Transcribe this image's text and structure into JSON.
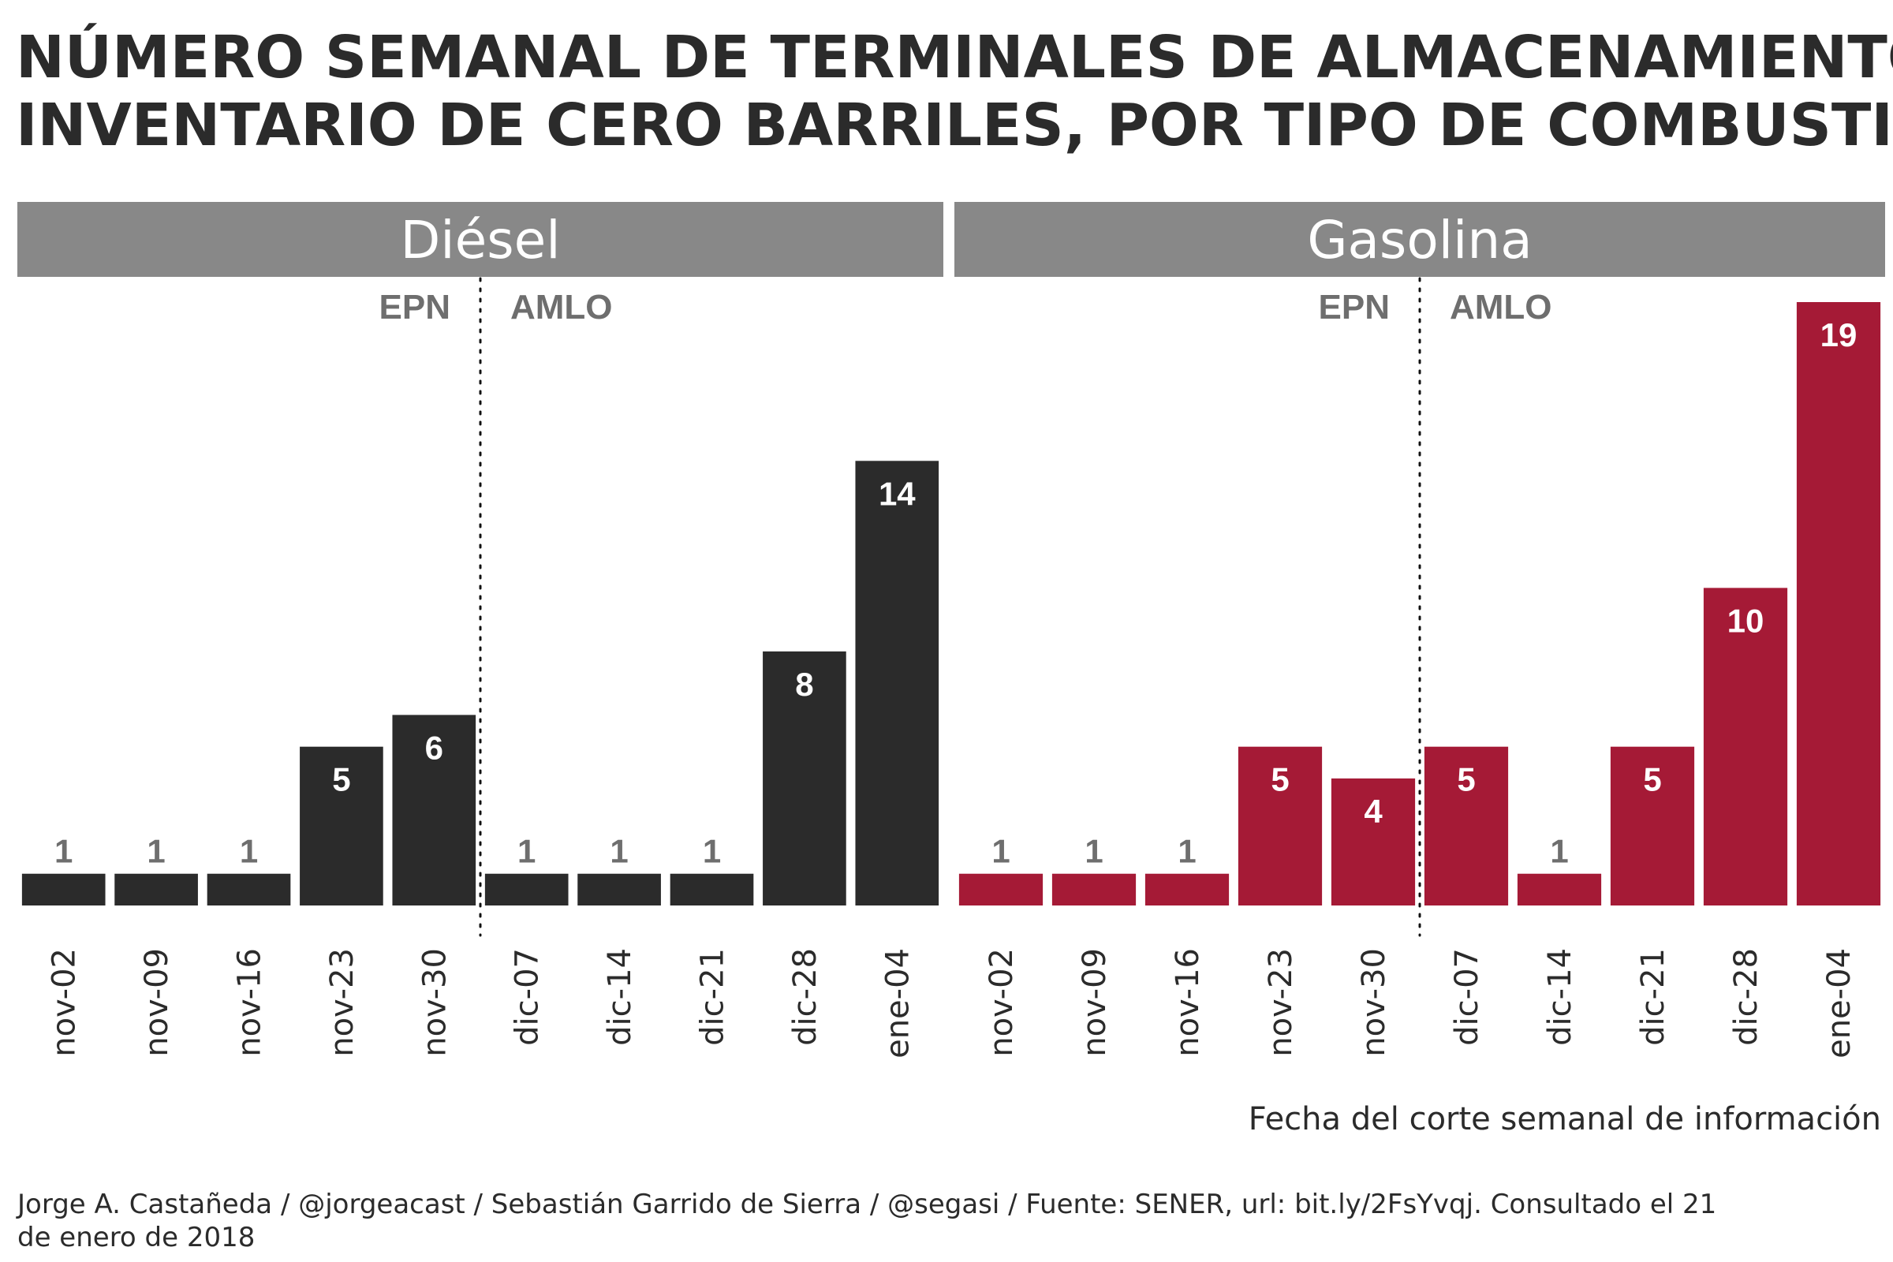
{
  "title_lines": [
    "NÚMERO SEMANAL DE TERMINALES DE ALMACENAMIENTO CON",
    "INVENTARIO DE CERO BARRILES, POR TIPO DE COMBUSTIBLE"
  ],
  "caption_lines": [
    "Jorge A. Castañeda / @jorgeacast / Sebastián Garrido de Sierra / @segasi / Fuente: SENER, url: bit.ly/2FsYvqj. Consultado el 21",
    "de enero de 2018"
  ],
  "chart_data": {
    "type": "bar",
    "xlabel": "Fecha del corte semanal de información",
    "ylabel": "",
    "ylim": [
      0,
      19
    ],
    "grid": false,
    "categories": [
      "nov-02",
      "nov-09",
      "nov-16",
      "nov-23",
      "nov-30",
      "dic-07",
      "dic-14",
      "dic-21",
      "dic-28",
      "ene-04"
    ],
    "periods": [
      "EPN",
      "AMLO"
    ],
    "period_split_after": "nov-30",
    "facets": [
      {
        "name": "Diésel",
        "color": "#2b2b2b",
        "values": [
          1,
          1,
          1,
          5,
          6,
          1,
          1,
          1,
          8,
          14
        ]
      },
      {
        "name": "Gasolina",
        "color": "#a51a36",
        "values": [
          1,
          1,
          1,
          5,
          4,
          5,
          1,
          5,
          10,
          19
        ]
      }
    ]
  },
  "colors": {
    "strip": "#888888",
    "label_outside": "#6e6e6e",
    "label_inside": "#ffffff"
  }
}
